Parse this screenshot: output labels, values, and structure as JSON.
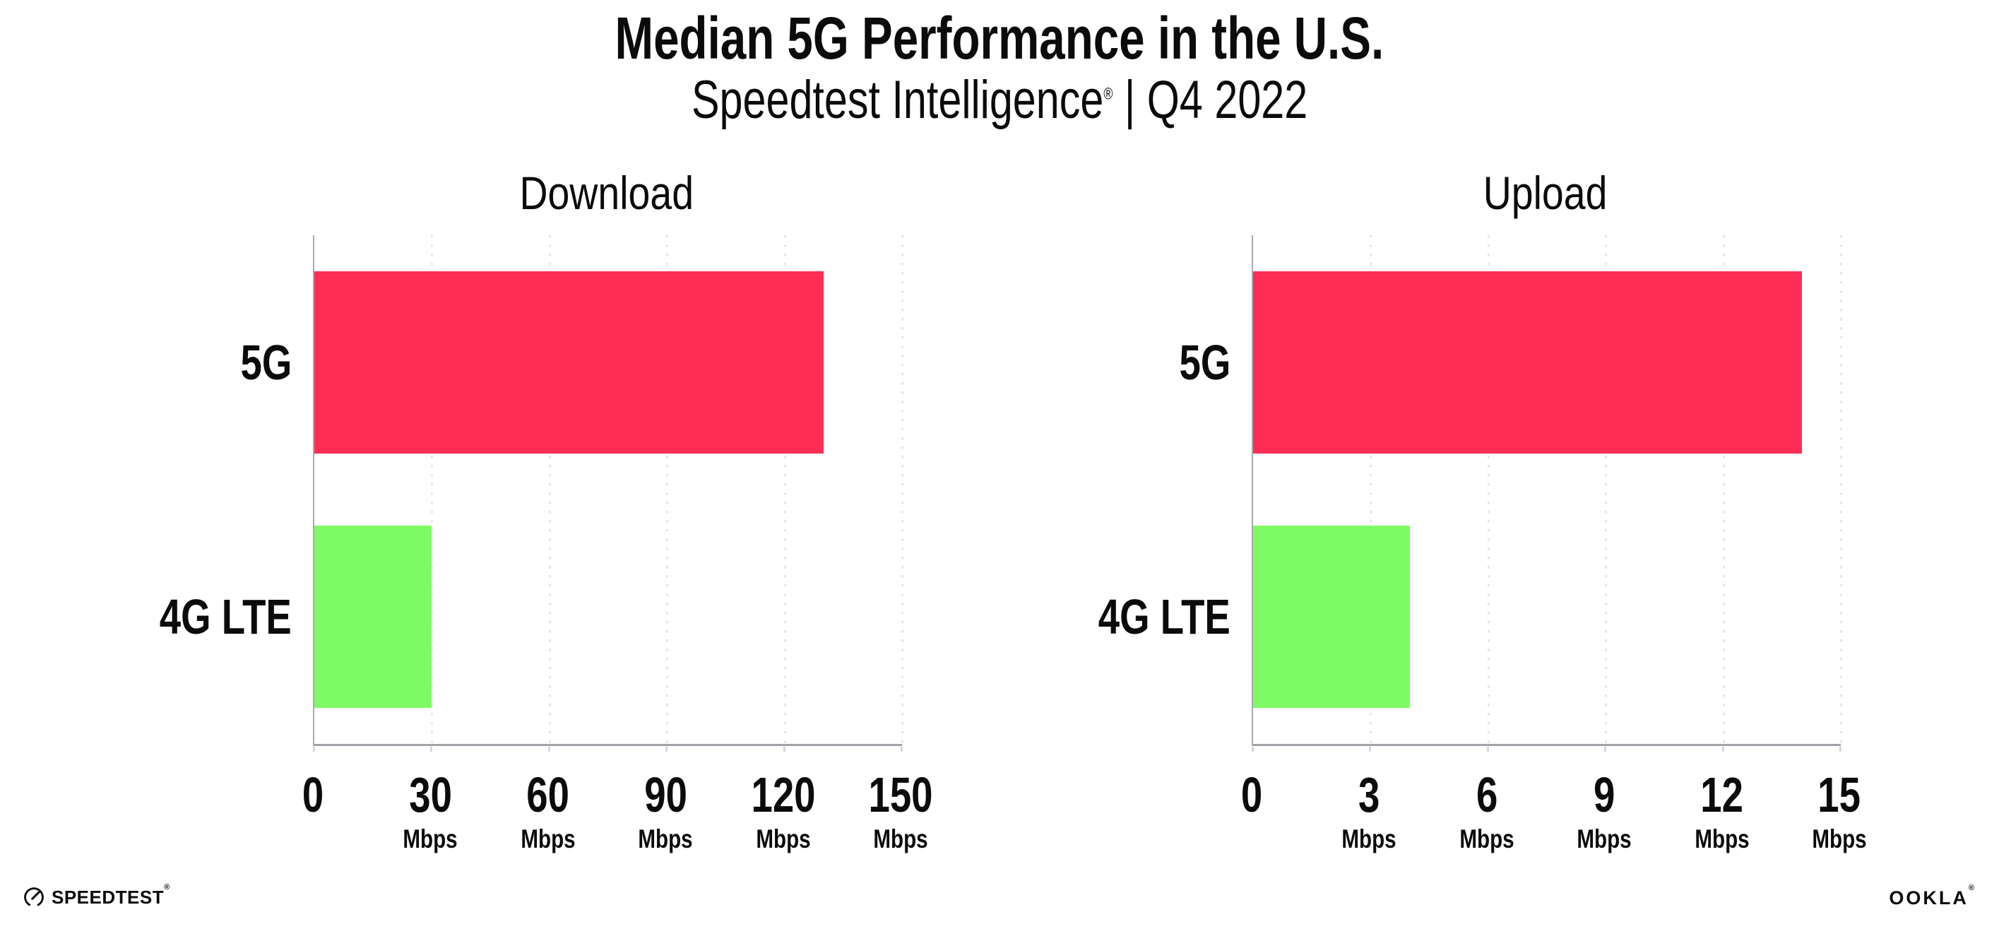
{
  "header": {
    "title": "Median 5G Performance in the U.S.",
    "subtitle_brand": "Speedtest Intelligence",
    "subtitle_reg": "®",
    "subtitle_rest": " | Q4 2022"
  },
  "colors": {
    "bar_5g": "#fd2d55",
    "bar_4g_lte": "#7efb64",
    "axis": "#a9a9af",
    "gridline": "#e4e4ec",
    "text": "#0b0b0b"
  },
  "chart_data": [
    {
      "type": "bar",
      "orientation": "horizontal",
      "title": "Download",
      "categories": [
        "5G",
        "4G LTE"
      ],
      "values": [
        130,
        30
      ],
      "unit": "Mbps",
      "xlim": [
        0,
        150
      ],
      "xticks": [
        0,
        30,
        60,
        90,
        120,
        150
      ],
      "bar_colors": [
        "#fd2d55",
        "#7efb64"
      ],
      "grid": "dotted-vertical",
      "legend": "none"
    },
    {
      "type": "bar",
      "orientation": "horizontal",
      "title": "Upload",
      "categories": [
        "5G",
        "4G LTE"
      ],
      "values": [
        14,
        4
      ],
      "unit": "Mbps",
      "xlim": [
        0,
        15
      ],
      "xticks": [
        0,
        3,
        6,
        9,
        12,
        15
      ],
      "bar_colors": [
        "#fd2d55",
        "#7efb64"
      ],
      "grid": "dotted-vertical",
      "legend": "none"
    }
  ],
  "footer": {
    "speedtest_label": "SPEEDTEST",
    "speedtest_reg": "®",
    "ookla_label": "OOKLA",
    "ookla_reg": "®"
  }
}
